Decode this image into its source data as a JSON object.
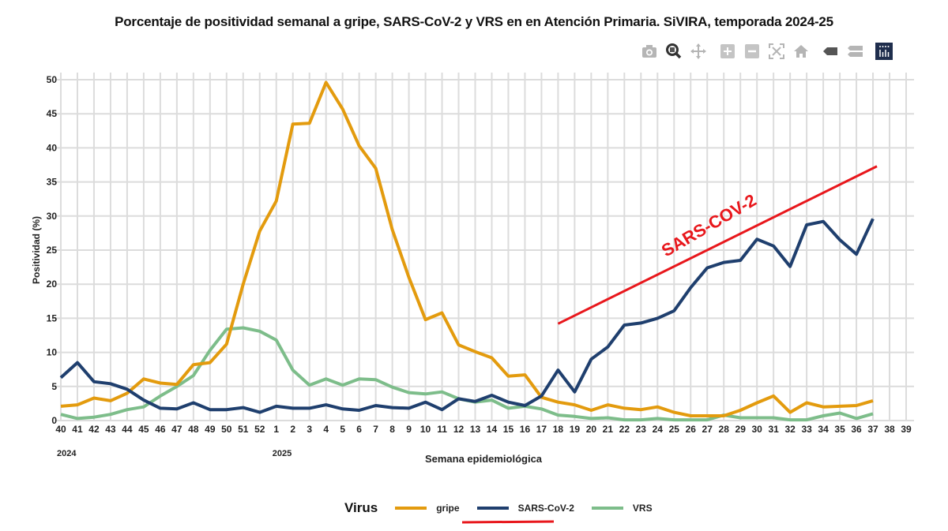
{
  "toolbar": {
    "icons": [
      "camera-icon",
      "zoom-icon",
      "pan-icon",
      "zoom-in-icon",
      "zoom-out-icon",
      "autoscale-icon",
      "reset-axes-icon",
      "hover-closest-icon",
      "hover-compare-icon",
      "plotly-logo-icon"
    ],
    "active_icon": "zoom-icon",
    "logo_color": "#1f2e4d"
  },
  "colors": {
    "gripe": "#e39b0e",
    "sars": "#1f3f6e",
    "vrs": "#7dbd8a",
    "annotation": "#e8171c",
    "grid": "#dcdcdc"
  },
  "annotation": {
    "text": "SARS-COV-2",
    "trend_from": {
      "week": "18",
      "value": 14.2
    },
    "trend_to": {
      "week": "37",
      "value": 37.3
    }
  },
  "chart_data": {
    "type": "line",
    "title": "Porcentaje de positividad semanal a gripe, SARS-CoV-2 y VRS en en Atención Primaria. SiVIRA, temporada 2024-25",
    "xlabel": "Semana epidemiológica",
    "ylabel": "Positividad (%)",
    "ylim": [
      0,
      50
    ],
    "yticks": [
      0,
      5,
      10,
      15,
      20,
      25,
      30,
      35,
      40,
      45,
      50
    ],
    "grid": true,
    "legend_title": "Virus",
    "legend_position": "bottom-center",
    "year_labels": [
      {
        "label": "2024",
        "at_week": "40"
      },
      {
        "label": "2025",
        "at_week": "1"
      }
    ],
    "x": [
      "40",
      "41",
      "42",
      "43",
      "44",
      "45",
      "46",
      "47",
      "48",
      "49",
      "50",
      "51",
      "52",
      "1",
      "2",
      "3",
      "4",
      "5",
      "6",
      "7",
      "8",
      "9",
      "10",
      "11",
      "12",
      "13",
      "14",
      "15",
      "16",
      "17",
      "18",
      "19",
      "20",
      "21",
      "22",
      "23",
      "24",
      "25",
      "26",
      "27",
      "28",
      "29",
      "30",
      "31",
      "32",
      "33",
      "34",
      "35",
      "36",
      "37",
      "38",
      "39"
    ],
    "series": [
      {
        "name": "gripe",
        "values": [
          2.1,
          2.3,
          3.3,
          2.9,
          4.0,
          6.1,
          5.5,
          5.3,
          8.2,
          8.5,
          11.2,
          20.0,
          27.8,
          32.2,
          43.5,
          43.6,
          49.6,
          45.7,
          40.3,
          37.0,
          28.0,
          21.0,
          14.8,
          15.8,
          11.1,
          10.1,
          9.2,
          6.5,
          6.7,
          3.4,
          2.7,
          2.3,
          1.5,
          2.3,
          1.8,
          1.6,
          2.0,
          1.2,
          0.7,
          0.7,
          0.7,
          1.5,
          2.6,
          3.6,
          1.2,
          2.6,
          2.0,
          2.1,
          2.2,
          2.9,
          null,
          null
        ]
      },
      {
        "name": "SARS-CoV-2",
        "values": [
          6.3,
          8.5,
          5.7,
          5.4,
          4.6,
          3.0,
          1.8,
          1.7,
          2.6,
          1.6,
          1.6,
          1.9,
          1.2,
          2.1,
          1.8,
          1.8,
          2.3,
          1.7,
          1.5,
          2.2,
          1.9,
          1.8,
          2.7,
          1.6,
          3.2,
          2.8,
          3.7,
          2.7,
          2.2,
          3.6,
          7.4,
          4.2,
          9.0,
          10.8,
          14.0,
          14.3,
          15.0,
          16.1,
          19.5,
          22.4,
          23.2,
          23.5,
          26.6,
          25.6,
          22.6,
          28.7,
          29.2,
          26.5,
          24.4,
          29.6,
          null,
          null
        ]
      },
      {
        "name": "VRS",
        "values": [
          0.9,
          0.3,
          0.5,
          0.9,
          1.6,
          2.0,
          3.6,
          5.0,
          6.6,
          10.3,
          13.4,
          13.6,
          13.1,
          11.8,
          7.4,
          5.2,
          6.1,
          5.2,
          6.1,
          6.0,
          4.9,
          4.1,
          3.9,
          4.2,
          3.2,
          2.7,
          3.0,
          1.8,
          2.1,
          1.7,
          0.8,
          0.6,
          0.3,
          0.4,
          0.1,
          0.1,
          0.3,
          0.1,
          0.1,
          0.1,
          0.8,
          0.4,
          0.4,
          0.4,
          0.1,
          0.1,
          0.7,
          1.1,
          0.3,
          1.0,
          null,
          null
        ]
      }
    ]
  }
}
